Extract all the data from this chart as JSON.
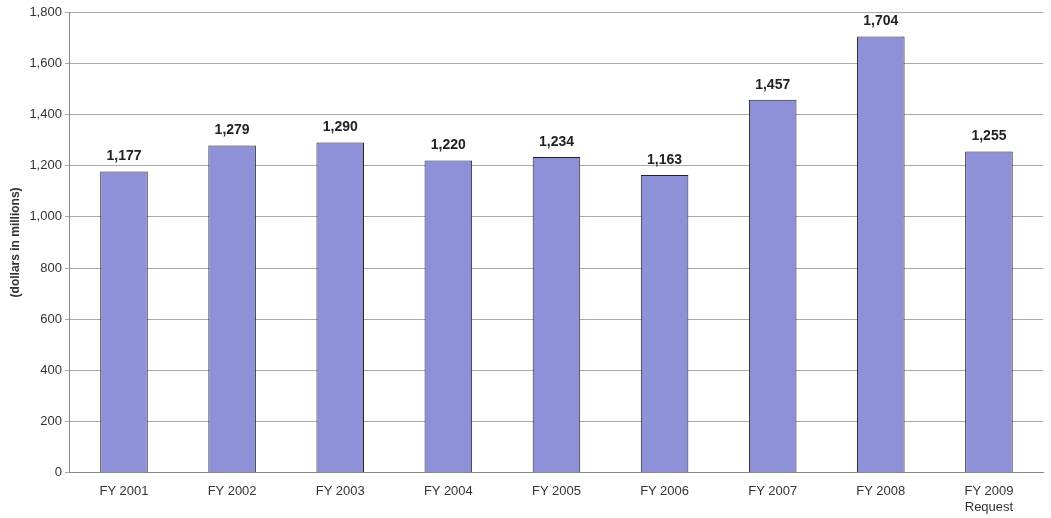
{
  "chart_data": {
    "type": "bar",
    "ylabel": "(dollars in millions)",
    "categories": [
      "FY 2001",
      "FY 2002",
      "FY 2003",
      "FY 2004",
      "FY 2005",
      "FY 2006",
      "FY 2007",
      "FY 2008",
      "FY 2009\nRequest"
    ],
    "values": [
      1177,
      1279,
      1290,
      1220,
      1234,
      1163,
      1457,
      1704,
      1255
    ],
    "value_labels": [
      "1,177",
      "1,279",
      "1,290",
      "1,220",
      "1,234",
      "1,163",
      "1,457",
      "1,704",
      "1,255"
    ],
    "color": "#8e90d8",
    "ylim": [
      0,
      1800
    ],
    "yticks": [
      0,
      200,
      400,
      600,
      800,
      {
        "value": 1000,
        "label": "1,000"
      },
      {
        "value": 1200,
        "label": "1,200"
      },
      {
        "value": 1400,
        "label": "1,400"
      },
      {
        "value": 1600,
        "label": "1,600"
      },
      {
        "value": 1800,
        "label": "1,800"
      }
    ],
    "grid": "y",
    "legend": false
  }
}
